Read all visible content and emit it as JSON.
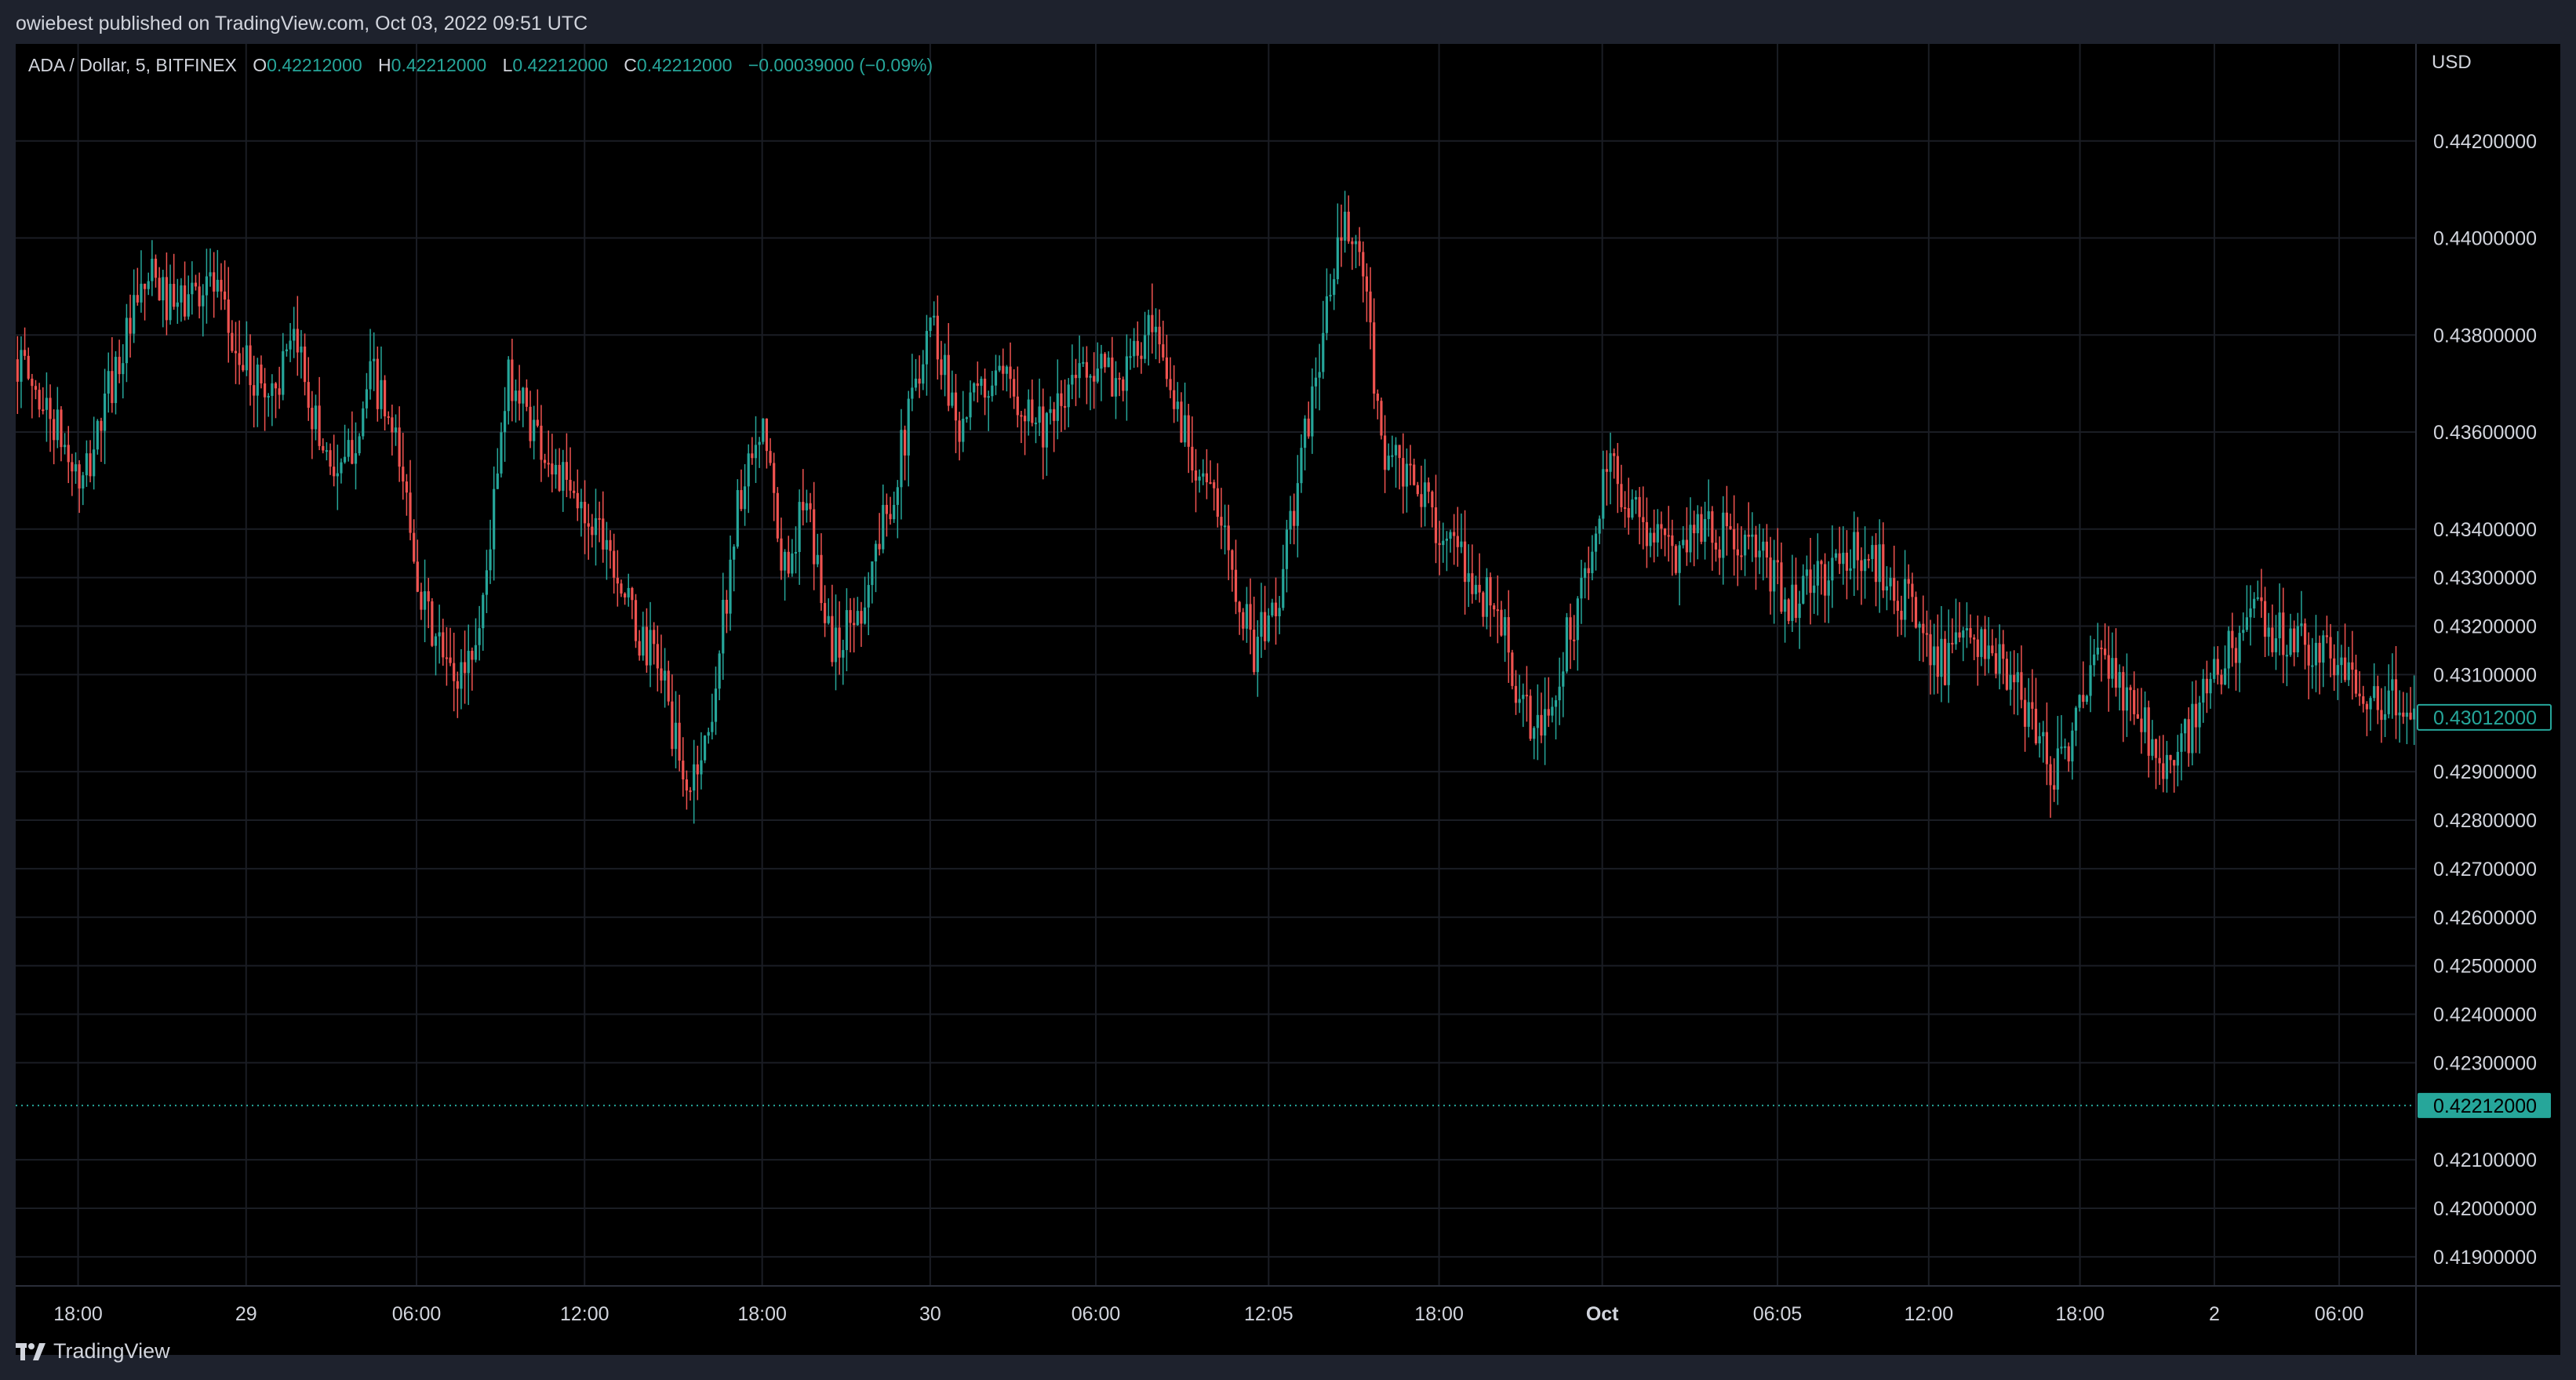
{
  "header": {
    "published": "owiebest published on TradingView.com, Oct 03, 2022 09:51 UTC"
  },
  "legend": {
    "symbol": "ADA / Dollar, 5, BITFINEX",
    "o_label": "O",
    "o_value": "0.42212000",
    "h_label": "H",
    "h_value": "0.42212000",
    "l_label": "L",
    "l_value": "0.42212000",
    "c_label": "C",
    "c_value": "0.42212000",
    "change": "−0.00039000 (−0.09%)"
  },
  "axis": {
    "unit": "USD"
  },
  "footer": {
    "brand": "TradingView"
  },
  "colors": {
    "up": "#26a69a",
    "down": "#ef5350",
    "background": "#000000",
    "grid": "#1a1d24",
    "text": "#d1d4dc"
  },
  "chart_data": {
    "type": "candlestick",
    "symbol": "ADA / Dollar",
    "interval": "5",
    "exchange": "BITFINEX",
    "y_ticks": [
      0.442,
      0.44,
      0.438,
      0.436,
      0.434,
      0.433,
      0.432,
      0.431,
      0.429,
      0.428,
      0.427,
      0.426,
      0.425,
      0.424,
      0.423,
      0.421,
      0.42,
      0.419
    ],
    "y_tick_labels": [
      "0.44200000",
      "0.44000000",
      "0.43800000",
      "0.43600000",
      "0.43400000",
      "0.43300000",
      "0.43200000",
      "0.43100000",
      "0.42900000",
      "0.42800000",
      "0.42700000",
      "0.42600000",
      "0.42500000",
      "0.42400000",
      "0.42300000",
      "0.42100000",
      "0.42000000",
      "0.41900000"
    ],
    "ylim": [
      0.4184,
      0.444
    ],
    "x_ticks": [
      "18:00",
      "29",
      "06:00",
      "12:00",
      "18:00",
      "30",
      "06:00",
      "12:05",
      "18:00",
      "Oct",
      "06:05",
      "12:00",
      "18:00",
      "2",
      "06:00"
    ],
    "x_tick_bold": [
      false,
      false,
      false,
      false,
      false,
      false,
      false,
      false,
      false,
      true,
      false,
      false,
      false,
      false,
      false
    ],
    "x_tick_fractions": [
      0.026,
      0.096,
      0.167,
      0.237,
      0.311,
      0.381,
      0.45,
      0.522,
      0.593,
      0.661,
      0.734,
      0.797,
      0.86,
      0.916,
      0.968
    ],
    "price_path": [
      [
        0,
        0.4375
      ],
      [
        0.015,
        0.4362
      ],
      [
        0.027,
        0.4348
      ],
      [
        0.04,
        0.4372
      ],
      [
        0.055,
        0.4392
      ],
      [
        0.065,
        0.4385
      ],
      [
        0.08,
        0.4392
      ],
      [
        0.092,
        0.4375
      ],
      [
        0.105,
        0.4368
      ],
      [
        0.117,
        0.4378
      ],
      [
        0.125,
        0.436
      ],
      [
        0.135,
        0.435
      ],
      [
        0.148,
        0.4372
      ],
      [
        0.16,
        0.4352
      ],
      [
        0.17,
        0.4322
      ],
      [
        0.182,
        0.4308
      ],
      [
        0.192,
        0.4318
      ],
      [
        0.205,
        0.4372
      ],
      [
        0.218,
        0.4358
      ],
      [
        0.232,
        0.4345
      ],
      [
        0.245,
        0.434
      ],
      [
        0.258,
        0.4318
      ],
      [
        0.268,
        0.4312
      ],
      [
        0.278,
        0.4285
      ],
      [
        0.288,
        0.4298
      ],
      [
        0.3,
        0.4345
      ],
      [
        0.312,
        0.436
      ],
      [
        0.318,
        0.433
      ],
      [
        0.328,
        0.4345
      ],
      [
        0.34,
        0.4315
      ],
      [
        0.352,
        0.4325
      ],
      [
        0.368,
        0.4355
      ],
      [
        0.38,
        0.4385
      ],
      [
        0.392,
        0.4362
      ],
      [
        0.405,
        0.437
      ],
      [
        0.417,
        0.4368
      ],
      [
        0.43,
        0.436
      ],
      [
        0.445,
        0.4375
      ],
      [
        0.458,
        0.437
      ],
      [
        0.472,
        0.438
      ],
      [
        0.485,
        0.4362
      ],
      [
        0.495,
        0.435
      ],
      [
        0.505,
        0.4335
      ],
      [
        0.515,
        0.4315
      ],
      [
        0.525,
        0.4325
      ],
      [
        0.532,
        0.4345
      ],
      [
        0.542,
        0.4375
      ],
      [
        0.552,
        0.4402
      ],
      [
        0.56,
        0.4395
      ],
      [
        0.568,
        0.4358
      ],
      [
        0.578,
        0.435
      ],
      [
        0.588,
        0.4345
      ],
      [
        0.598,
        0.4335
      ],
      [
        0.608,
        0.4328
      ],
      [
        0.618,
        0.4322
      ],
      [
        0.626,
        0.4302
      ],
      [
        0.636,
        0.4298
      ],
      [
        0.646,
        0.4318
      ],
      [
        0.655,
        0.4332
      ],
      [
        0.662,
        0.4352
      ],
      [
        0.67,
        0.4348
      ],
      [
        0.678,
        0.434
      ],
      [
        0.69,
        0.4335
      ],
      [
        0.7,
        0.4342
      ],
      [
        0.712,
        0.4338
      ],
      [
        0.724,
        0.4335
      ],
      [
        0.738,
        0.4325
      ],
      [
        0.752,
        0.433
      ],
      [
        0.765,
        0.4335
      ],
      [
        0.778,
        0.4332
      ],
      [
        0.79,
        0.4322
      ],
      [
        0.803,
        0.4312
      ],
      [
        0.815,
        0.4318
      ],
      [
        0.828,
        0.431
      ],
      [
        0.84,
        0.43
      ],
      [
        0.848,
        0.429
      ],
      [
        0.858,
        0.43
      ],
      [
        0.868,
        0.4315
      ],
      [
        0.878,
        0.4305
      ],
      [
        0.888,
        0.4298
      ],
      [
        0.898,
        0.429
      ],
      [
        0.908,
        0.4302
      ],
      [
        0.918,
        0.4312
      ],
      [
        0.93,
        0.4322
      ],
      [
        0.945,
        0.4318
      ],
      [
        0.958,
        0.4315
      ],
      [
        0.972,
        0.431
      ],
      [
        0.985,
        0.4305
      ],
      [
        1.0,
        0.4302
      ]
    ],
    "last_price": 0.42212,
    "last_price_label": "0.42212000",
    "secondary_price": 0.43012,
    "secondary_price_label": "0.43012000",
    "grid": true
  }
}
